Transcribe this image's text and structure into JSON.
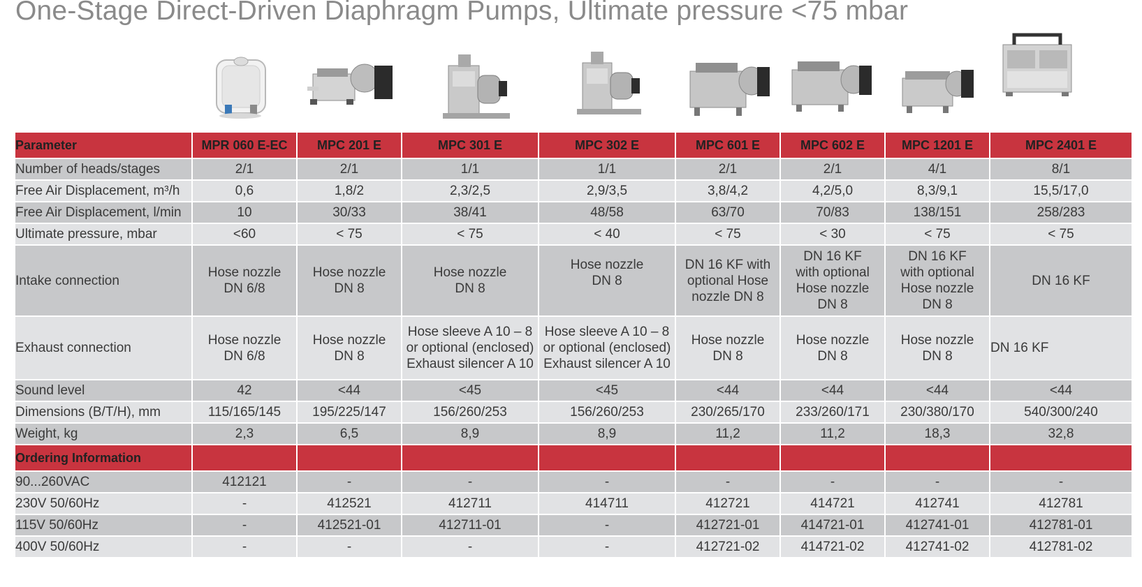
{
  "title": "One-Stage Direct-Driven Diaphragm Pumps, Ultimate pressure <75 mbar",
  "products": [
    {
      "model": "MPR 060 E-EC",
      "image": "compact-white-pump-icon"
    },
    {
      "model": "MPC 201 E",
      "image": "twin-head-pump-icon"
    },
    {
      "model": "MPC 301 E",
      "image": "single-head-pump-icon"
    },
    {
      "model": "MPC 302 E",
      "image": "single-head-pump-icon"
    },
    {
      "model": "MPC 601 E",
      "image": "twin-head-pump-icon"
    },
    {
      "model": "MPC 602 E",
      "image": "twin-head-pump-icon"
    },
    {
      "model": "MPC 1201 E",
      "image": "four-head-pump-icon"
    },
    {
      "model": "MPC 2401 E",
      "image": "eight-head-pump-icon"
    }
  ],
  "table": {
    "parameter_header": "Parameter",
    "specs": [
      {
        "label": "Number of heads/stages",
        "values": [
          "2/1",
          "2/1",
          "1/1",
          "1/1",
          "2/1",
          "2/1",
          "4/1",
          "8/1"
        ]
      },
      {
        "label": "Free Air Displacement, m³/h",
        "values": [
          "0,6",
          "1,8/2",
          "2,3/2,5",
          "2,9/3,5",
          "3,8/4,2",
          "4,2/5,0",
          "8,3/9,1",
          "15,5/17,0"
        ]
      },
      {
        "label": "Free Air Displacement, l/min",
        "values": [
          "10",
          "30/33",
          "38/41",
          "48/58",
          "63/70",
          "70/83",
          "138/151",
          "258/283"
        ]
      },
      {
        "label": "Ultimate pressure, mbar",
        "values": [
          "<60",
          "< 75",
          "< 75",
          "< 40",
          "< 75",
          "< 30",
          "< 75",
          "< 75"
        ]
      },
      {
        "label": "Intake connection",
        "values": [
          [
            "Hose nozzle",
            "DN 6/8"
          ],
          [
            "Hose nozzle",
            "DN 8"
          ],
          [
            "Hose nozzle",
            "DN 8"
          ],
          [
            "Hose nozzle",
            "DN 8",
            ""
          ],
          [
            "DN 16 KF with",
            "optional Hose",
            "nozzle DN 8"
          ],
          [
            "DN 16 KF",
            "with optional",
            "Hose nozzle",
            "DN 8"
          ],
          [
            "DN 16 KF",
            "with optional",
            "Hose nozzle",
            "DN 8"
          ],
          [
            "DN 16 KF"
          ]
        ]
      },
      {
        "label": "Exhaust connection",
        "values": [
          [
            "Hose nozzle",
            "DN 6/8"
          ],
          [
            "Hose nozzle",
            "DN 8"
          ],
          [
            "Hose sleeve A 10 – 8",
            "or optional (enclosed)",
            "Exhaust silencer A 10"
          ],
          [
            "Hose sleeve A 10 – 8",
            "or optional (enclosed)",
            "Exhaust silencer A 10"
          ],
          [
            "Hose nozzle",
            "DN 8"
          ],
          [
            "Hose nozzle",
            "DN 8"
          ],
          [
            "Hose nozzle",
            "DN 8"
          ],
          [
            "DN 16 KF"
          ]
        ]
      },
      {
        "label": "Sound level",
        "values": [
          "42",
          "<44",
          "<45",
          "<45",
          "<44",
          "<44",
          "<44",
          "<44"
        ]
      },
      {
        "label": "Dimensions (B/T/H), mm",
        "values": [
          "115/165/145",
          "195/225/147",
          "156/260/253",
          "156/260/253",
          "230/265/170",
          "233/260/171",
          "230/380/170",
          "540/300/240"
        ]
      },
      {
        "label": "Weight, kg",
        "values": [
          "2,3",
          "6,5",
          "8,9",
          "8,9",
          "11,2",
          "11,2",
          "18,3",
          "32,8"
        ]
      }
    ],
    "ordering_header": "Ordering Information",
    "ordering": [
      {
        "label": "90...260VAC",
        "values": [
          "412121",
          "-",
          "-",
          "-",
          "-",
          "-",
          "-",
          "-"
        ]
      },
      {
        "label": "230V 50/60Hz",
        "values": [
          "-",
          "412521",
          "412711",
          "414711",
          "412721",
          "414721",
          "412741",
          "412781"
        ]
      },
      {
        "label": "115V 50/60Hz",
        "values": [
          "-",
          "412521-01",
          "412711-01",
          "-",
          "412721-01",
          "414721-01",
          "412741-01",
          "412781-01"
        ]
      },
      {
        "label": "400V 50/60Hz",
        "values": [
          "-",
          "-",
          "-",
          "-",
          "412721-02",
          "414721-02",
          "412741-02",
          "412781-02"
        ]
      }
    ]
  },
  "colors": {
    "header_red": "#c8343f",
    "row_dark": "#c7c8ca",
    "row_light": "#e1e2e4",
    "title_gray": "#8a8a8a"
  }
}
